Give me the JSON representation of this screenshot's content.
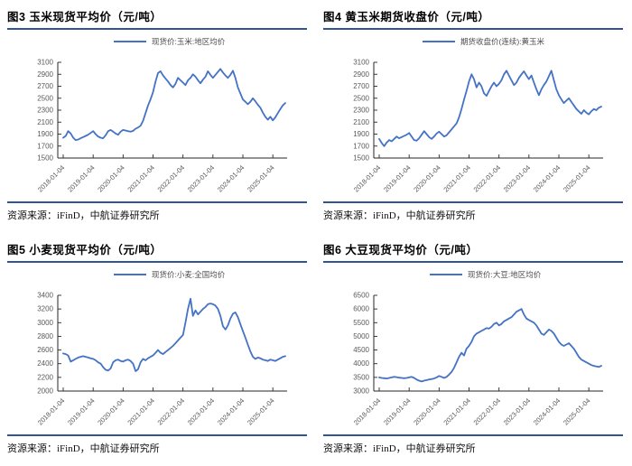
{
  "colors": {
    "series_line": "#4472C4",
    "title_rule": "#2F5597",
    "axis_line": "#262626",
    "tick_label": "#595959",
    "legend_text": "#4d4d4d"
  },
  "source": {
    "text": "资源来源：iFinD，中航证券研究所"
  },
  "chart_data": [
    {
      "type": "line",
      "title": "图3 玉米现货平均价（元/吨）",
      "legend": "现货价:玉米:地区均价",
      "legend_position": "top-center",
      "grid": false,
      "ylim": [
        1500,
        3100
      ],
      "yticks": [
        1500,
        1700,
        1900,
        2100,
        2300,
        2500,
        2700,
        2900,
        3100
      ],
      "x_tick_labels": [
        "2018-01-04",
        "2019-01-04",
        "2020-01-04",
        "2021-01-04",
        "2022-01-04",
        "2023-01-04",
        "2024-01-04",
        "2025-01-04"
      ],
      "x_note": "monthly values from 2018-01 to 2025-06",
      "values": [
        1840,
        1870,
        1950,
        1910,
        1840,
        1800,
        1810,
        1830,
        1850,
        1870,
        1890,
        1920,
        1950,
        1900,
        1860,
        1840,
        1830,
        1880,
        1950,
        1970,
        1940,
        1910,
        1890,
        1940,
        1970,
        1960,
        1950,
        1940,
        1955,
        1990,
        2010,
        2040,
        2120,
        2250,
        2380,
        2480,
        2600,
        2780,
        2920,
        2950,
        2880,
        2830,
        2780,
        2720,
        2680,
        2740,
        2840,
        2800,
        2760,
        2720,
        2800,
        2840,
        2900,
        2860,
        2800,
        2750,
        2810,
        2860,
        2950,
        2890,
        2840,
        2890,
        2940,
        2990,
        2930,
        2880,
        2840,
        2890,
        2960,
        2840,
        2680,
        2580,
        2480,
        2440,
        2400,
        2440,
        2500,
        2450,
        2390,
        2340,
        2260,
        2190,
        2140,
        2190,
        2130,
        2180,
        2250,
        2320,
        2380,
        2420
      ]
    },
    {
      "type": "line",
      "title": "图4 黄玉米期货收盘价（元/吨）",
      "legend": "期货收盘价(连续):黄玉米",
      "legend_position": "top-center",
      "grid": false,
      "ylim": [
        1500,
        3100
      ],
      "yticks": [
        1500,
        1700,
        1900,
        2100,
        2300,
        2500,
        2700,
        2900,
        3100
      ],
      "x_tick_labels": [
        "2018-01-04",
        "2019-01-04",
        "2020-01-04",
        "2021-01-04",
        "2022-01-04",
        "2023-01-04",
        "2024-01-04",
        "2025-01-04"
      ],
      "x_note": "monthly values from 2018-01 to 2025-06",
      "values": [
        1820,
        1750,
        1700,
        1760,
        1800,
        1780,
        1820,
        1860,
        1830,
        1850,
        1870,
        1890,
        1920,
        1860,
        1800,
        1790,
        1830,
        1890,
        1950,
        1900,
        1850,
        1820,
        1860,
        1910,
        1940,
        1900,
        1860,
        1880,
        1930,
        1980,
        2030,
        2080,
        2180,
        2320,
        2480,
        2620,
        2780,
        2900,
        2820,
        2680,
        2760,
        2700,
        2580,
        2540,
        2620,
        2700,
        2760,
        2700,
        2740,
        2800,
        2900,
        2960,
        2880,
        2800,
        2720,
        2760,
        2840,
        2900,
        2950,
        2880,
        2820,
        2880,
        2760,
        2650,
        2550,
        2650,
        2720,
        2780,
        2870,
        2960,
        2800,
        2650,
        2550,
        2480,
        2420,
        2460,
        2500,
        2440,
        2380,
        2320,
        2280,
        2240,
        2300,
        2260,
        2230,
        2280,
        2320,
        2300,
        2340,
        2360
      ]
    },
    {
      "type": "line",
      "title": "图5 小麦现货平均价（元/吨）",
      "legend": "现货价:小麦:全国均价",
      "legend_position": "top-center",
      "grid": false,
      "ylim": [
        2000,
        3400
      ],
      "yticks": [
        2000,
        2200,
        2400,
        2600,
        2800,
        3000,
        3200,
        3400
      ],
      "x_tick_labels": [
        "2018-01-04",
        "2019-01-04",
        "2020-01-04",
        "2021-01-04",
        "2022-01-04",
        "2023-01-04",
        "2024-01-04",
        "2025-01-04"
      ],
      "x_note": "monthly values from 2018-01 to 2025-06",
      "values": [
        2550,
        2540,
        2520,
        2430,
        2450,
        2470,
        2490,
        2500,
        2510,
        2500,
        2490,
        2480,
        2470,
        2450,
        2420,
        2400,
        2350,
        2310,
        2300,
        2330,
        2420,
        2450,
        2460,
        2440,
        2430,
        2450,
        2460,
        2440,
        2400,
        2290,
        2320,
        2420,
        2470,
        2450,
        2480,
        2500,
        2520,
        2560,
        2600,
        2560,
        2540,
        2570,
        2600,
        2630,
        2660,
        2700,
        2740,
        2780,
        2820,
        3000,
        3200,
        3350,
        3100,
        3180,
        3120,
        3160,
        3200,
        3230,
        3270,
        3280,
        3270,
        3250,
        3200,
        3100,
        2950,
        2900,
        2960,
        3060,
        3130,
        3150,
        3080,
        2980,
        2880,
        2780,
        2680,
        2580,
        2500,
        2470,
        2490,
        2480,
        2460,
        2450,
        2440,
        2460,
        2450,
        2440,
        2460,
        2480,
        2500,
        2510
      ]
    },
    {
      "type": "line",
      "title": "图6 大豆现货平均价（元/吨）",
      "legend": "现货价:大豆:地区均价",
      "legend_position": "top-center",
      "grid": false,
      "ylim": [
        3000,
        6500
      ],
      "yticks": [
        3000,
        3500,
        4000,
        4500,
        5000,
        5500,
        6000,
        6500
      ],
      "x_tick_labels": [
        "2018-01-04",
        "2019-01-04",
        "2020-01-04",
        "2021-01-04",
        "2022-01-04",
        "2023-01-04",
        "2024-01-04",
        "2025-01-04"
      ],
      "x_note": "monthly values from 2018-01 to 2025-06",
      "values": [
        3500,
        3480,
        3470,
        3460,
        3480,
        3500,
        3520,
        3510,
        3490,
        3480,
        3470,
        3480,
        3500,
        3520,
        3480,
        3420,
        3380,
        3350,
        3380,
        3400,
        3420,
        3440,
        3460,
        3500,
        3550,
        3520,
        3480,
        3520,
        3600,
        3700,
        3850,
        4050,
        4250,
        4400,
        4300,
        4550,
        4650,
        4800,
        5000,
        5100,
        5150,
        5200,
        5250,
        5300,
        5280,
        5350,
        5450,
        5500,
        5400,
        5450,
        5550,
        5600,
        5650,
        5700,
        5800,
        5900,
        5950,
        6000,
        5800,
        5650,
        5600,
        5550,
        5500,
        5400,
        5250,
        5100,
        5050,
        5150,
        5250,
        5200,
        5100,
        4950,
        4800,
        4700,
        4650,
        4700,
        4750,
        4650,
        4550,
        4400,
        4250,
        4150,
        4100,
        4050,
        4000,
        3950,
        3920,
        3900,
        3880,
        3920
      ]
    }
  ]
}
